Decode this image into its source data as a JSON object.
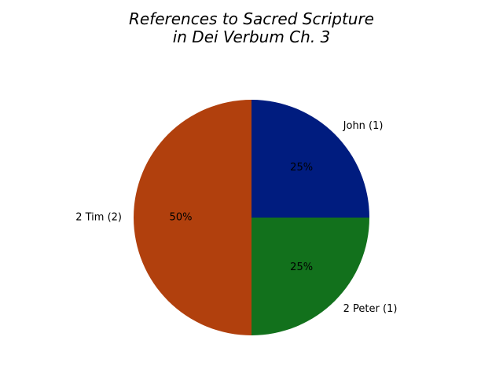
{
  "chart_data": {
    "type": "pie",
    "title_lines": [
      "References to Sacred Scripture",
      "in Dei Verbum Ch. 3"
    ],
    "slices": [
      {
        "label": "John (1)",
        "value": 1,
        "percent_label": "25%",
        "color": "#001c7f"
      },
      {
        "label": "2 Peter (1)",
        "value": 1,
        "percent_label": "25%",
        "color": "#12711c"
      },
      {
        "label": "2 Tim (2)",
        "value": 2,
        "percent_label": "50%",
        "color": "#b1400d"
      }
    ],
    "start_angle_deg": 90,
    "direction": "clockwise"
  }
}
